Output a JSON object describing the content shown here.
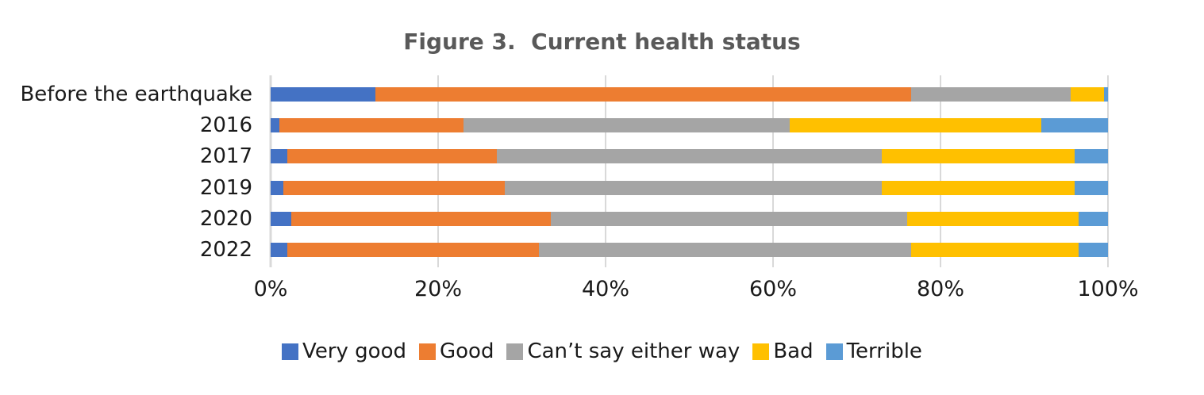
{
  "chart_data": {
    "type": "bar",
    "variant": "horizontal-stacked",
    "title": "Figure 3.  Current health status",
    "title_color": "#595959",
    "categories": [
      "Before the earthquake",
      "2016",
      "2017",
      "2019",
      "2020",
      "2022"
    ],
    "series": [
      {
        "name": "Very good",
        "color": "#4472C4",
        "values": [
          12.5,
          1,
          2,
          1.5,
          2.5,
          2
        ]
      },
      {
        "name": "Good",
        "color": "#ED7D31",
        "values": [
          64,
          22,
          25,
          26.5,
          31,
          30
        ]
      },
      {
        "name": "Can’t say either way",
        "color": "#A5A5A5",
        "values": [
          19,
          39,
          46,
          45,
          42.5,
          44.5
        ]
      },
      {
        "name": "Bad",
        "color": "#FFC000",
        "values": [
          4,
          30,
          23,
          23,
          20.5,
          20
        ]
      },
      {
        "name": "Terrible",
        "color": "#5B9BD5",
        "values": [
          0.5,
          8,
          4,
          4,
          3.5,
          3.5
        ]
      }
    ],
    "x_ticks": [
      {
        "label": "0%",
        "value": 0
      },
      {
        "label": "20%",
        "value": 20
      },
      {
        "label": "40%",
        "value": 40
      },
      {
        "label": "60%",
        "value": 60
      },
      {
        "label": "80%",
        "value": 80
      },
      {
        "label": "100%",
        "value": 100
      }
    ],
    "xlim": [
      0,
      100
    ],
    "grid": "vertical",
    "gridline_color": "#D9D9D9",
    "legend_position": "bottom"
  }
}
